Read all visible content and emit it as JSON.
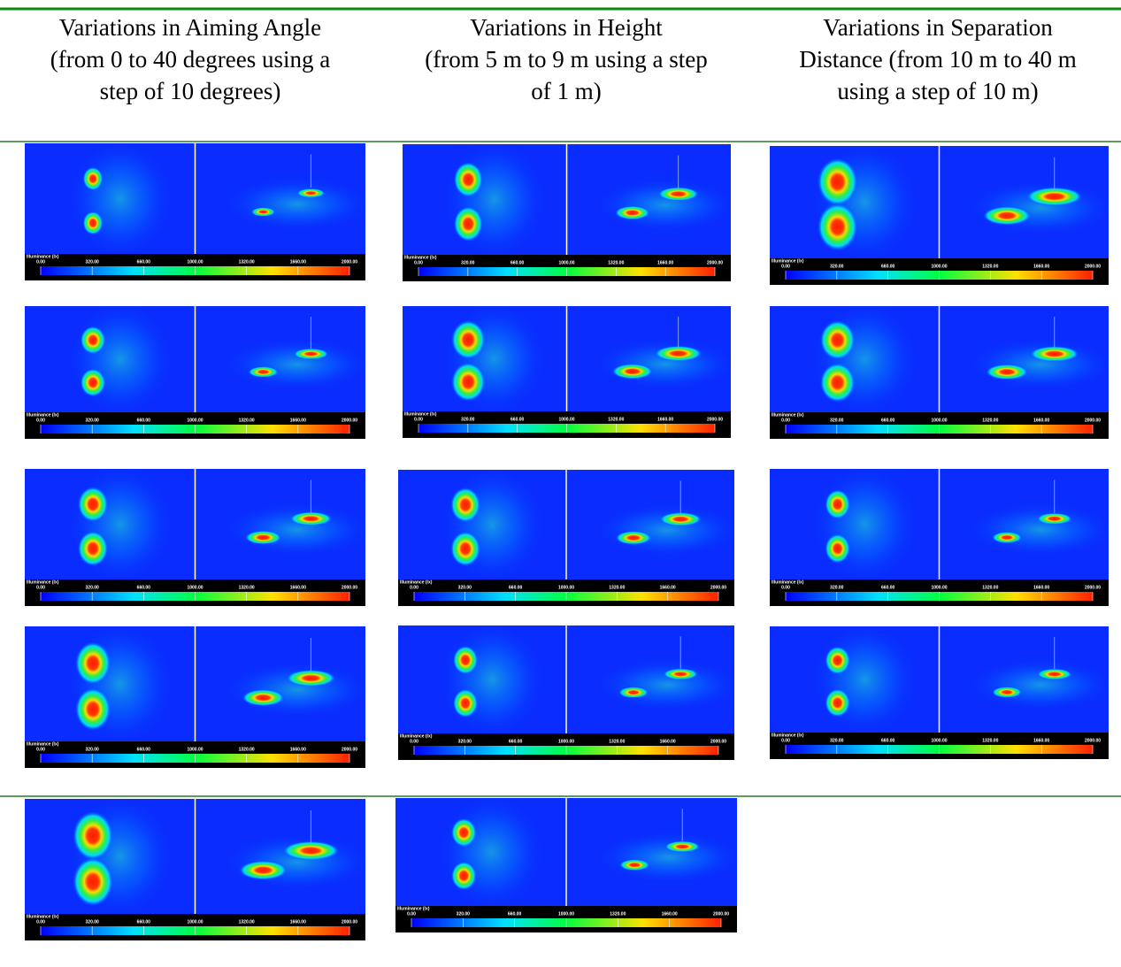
{
  "header": {
    "columns": [
      [
        "Variations in Aiming Angle",
        "(from 0 to 40 degrees using a",
        "step of 10 degrees)"
      ],
      [
        "Variations in Height",
        "(from 5 m to 9 m using a step",
        "of 1 m)"
      ],
      [
        "Variations in Separation",
        "Distance (from 10 m to 40 m",
        "using a step of 10 m)"
      ]
    ]
  },
  "legend": {
    "title": "Illuminance (lx)",
    "ticks": [
      "0.00",
      "320.00",
      "660.00",
      "1000.00",
      "1320.00",
      "1660.00",
      "2000.00"
    ]
  }
}
